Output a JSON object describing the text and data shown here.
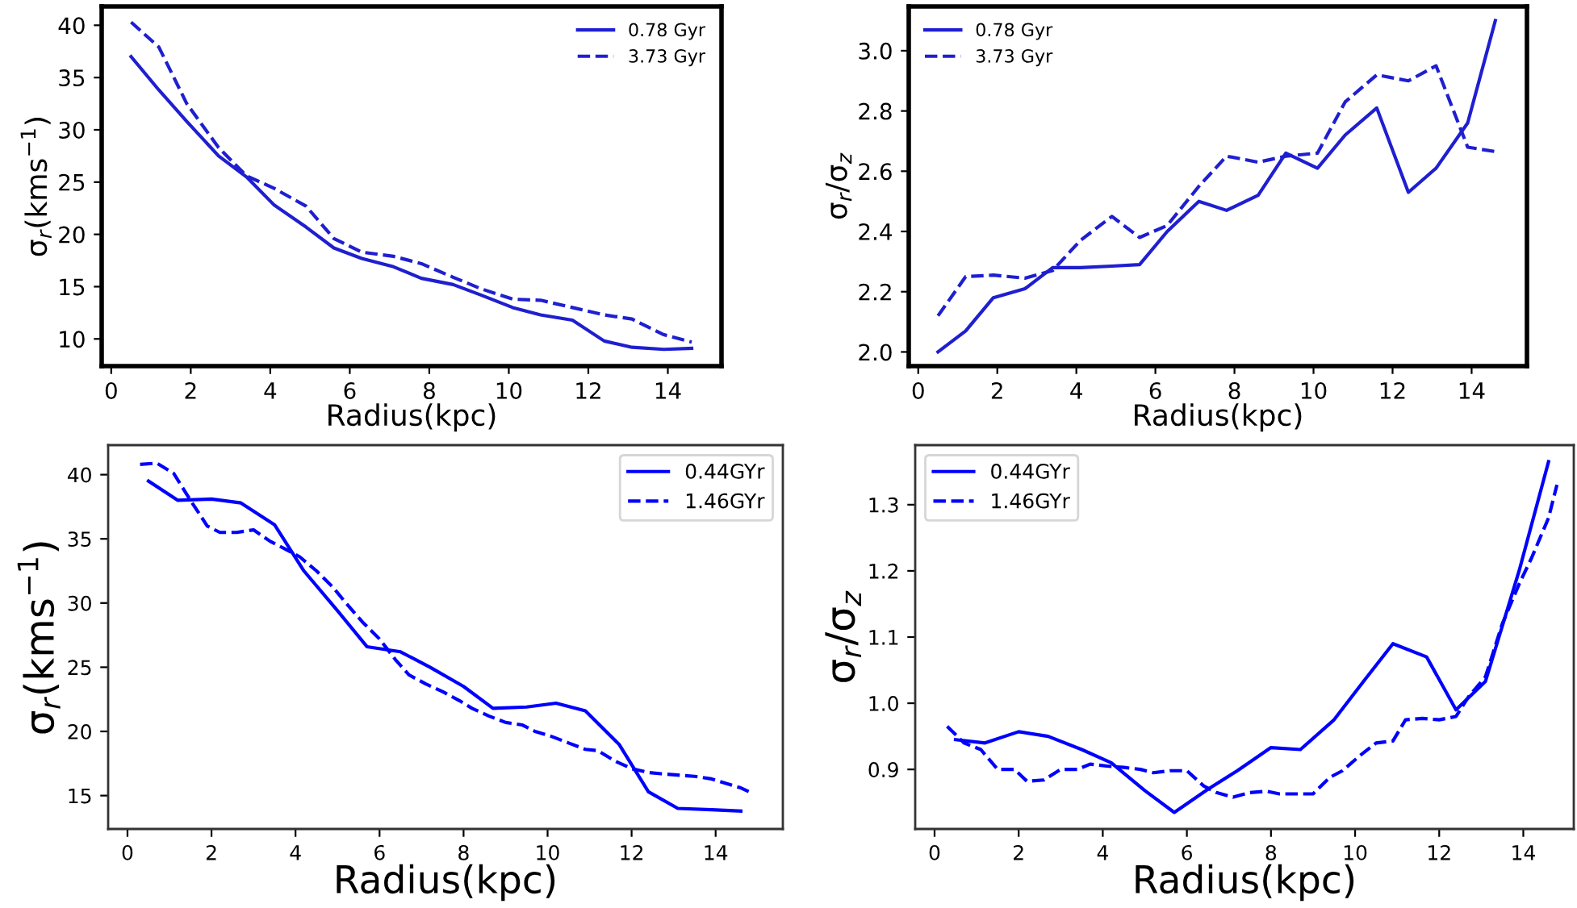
{
  "chart_data": [
    {
      "type": "line",
      "xlabel": "Radius(kpc)",
      "ylabel": "σ$_{r}$(kms$^{−1}$)",
      "xlim": [
        -0.24,
        15.35
      ],
      "ylim": [
        7.4,
        41.8
      ],
      "xticks": [
        0,
        2,
        4,
        6,
        8,
        10,
        12,
        14
      ],
      "yticks": [
        10,
        15,
        20,
        25,
        30,
        35,
        40
      ],
      "legend": "top right",
      "grid": false,
      "x": [
        0.5,
        1.2,
        1.9,
        2.7,
        3.4,
        4.1,
        4.9,
        5.6,
        6.3,
        7.1,
        7.8,
        8.6,
        9.3,
        10.1,
        10.8,
        11.6,
        12.4,
        13.1,
        13.9,
        14.6
      ],
      "series": [
        {
          "name": "0.78 Gyr",
          "color": "#1f1fd0",
          "line_style": "solid",
          "values": [
            37,
            33.8,
            30.8,
            27.5,
            25.5,
            22.8,
            20.7,
            18.7,
            17.7,
            16.9,
            15.8,
            15.2,
            14.2,
            13,
            12.3,
            11.8,
            9.8,
            9.2,
            9.0,
            9.1
          ]
        },
        {
          "name": "3.73 Gyr",
          "color": "#1f1fd0",
          "line_style": "dashed",
          "values": [
            40.3,
            37.9,
            32.5,
            28.3,
            25.6,
            24.4,
            22.7,
            19.6,
            18.3,
            17.9,
            17.2,
            15.9,
            14.8,
            13.8,
            13.7,
            13.0,
            12.3,
            11.9,
            10.4,
            9.7
          ]
        }
      ]
    },
    {
      "type": "line",
      "xlabel": "Radius(kpc)",
      "ylabel": "σ$_{r}$/σ$_{z}$",
      "xlim": [
        -0.24,
        15.4
      ],
      "ylim": [
        1.953,
        3.147
      ],
      "xticks": [
        0,
        2,
        4,
        6,
        8,
        10,
        12,
        14
      ],
      "yticks": [
        {
          "value": 2,
          "label": "2.0"
        },
        {
          "value": 2.2,
          "label": "2.2"
        },
        {
          "value": 2.4,
          "label": "2.4"
        },
        {
          "value": 2.6,
          "label": "2.6"
        },
        {
          "value": 2.8,
          "label": "2.8"
        },
        {
          "value": 3,
          "label": "3.0"
        }
      ],
      "legend": "top left",
      "grid": false,
      "x": [
        0.5,
        1.2,
        1.9,
        2.7,
        3.4,
        4.1,
        4.9,
        5.6,
        6.3,
        7.1,
        7.8,
        8.6,
        9.3,
        10.1,
        10.8,
        11.6,
        12.4,
        13.1,
        13.9,
        14.6
      ],
      "series": [
        {
          "name": "0.78 Gyr",
          "color": "#1f1fd0",
          "line_style": "solid",
          "values": [
            2.0,
            2.07,
            2.18,
            2.21,
            2.28,
            2.28,
            2.285,
            2.29,
            2.4,
            2.5,
            2.47,
            2.52,
            2.66,
            2.61,
            2.72,
            2.81,
            2.53,
            2.61,
            2.76,
            3.1
          ]
        },
        {
          "name": "3.73 Gyr",
          "color": "#1f1fd0",
          "line_style": "dashed",
          "values": [
            2.12,
            2.25,
            2.255,
            2.245,
            2.27,
            2.37,
            2.45,
            2.38,
            2.42,
            2.55,
            2.65,
            2.63,
            2.65,
            2.66,
            2.83,
            2.92,
            2.9,
            2.95,
            2.68,
            2.665
          ]
        }
      ]
    },
    {
      "type": "line",
      "xlabel": "Radius(kpc)",
      "ylabel": "σ$_{r}$(kms$^{−1}$)",
      "xlim": [
        -0.46,
        15.6
      ],
      "ylim": [
        12.4,
        42.3
      ],
      "xticks": [
        0,
        2,
        4,
        6,
        8,
        10,
        12,
        14
      ],
      "yticks": [
        15,
        20,
        25,
        30,
        35,
        40
      ],
      "legend": "top right",
      "grid": false,
      "series": [
        {
          "name": "0.44GYr",
          "color": "#0000ff",
          "line_style": "solid",
          "x": [
            0.5,
            1.2,
            2.0,
            2.7,
            3.5,
            4.2,
            5.0,
            5.7,
            6.5,
            7.2,
            8.0,
            8.7,
            9.5,
            10.2,
            10.9,
            11.7,
            12.4,
            13.1,
            13.9,
            14.6
          ],
          "values": [
            39.5,
            38,
            38.1,
            37.8,
            36.1,
            32.5,
            29.4,
            26.6,
            26.2,
            25,
            23.5,
            21.8,
            21.9,
            22.2,
            21.6,
            19,
            15.3,
            14,
            13.9,
            13.8
          ]
        },
        {
          "name": "1.46GYr",
          "color": "#0000ff",
          "line_style": "dashed",
          "x": [
            0.3,
            0.7,
            1.1,
            1.5,
            1.9,
            2.2,
            2.6,
            3.0,
            3.4,
            3.7,
            4.1,
            4.5,
            4.9,
            5.2,
            5.6,
            6.0,
            6.4,
            6.7,
            7.1,
            7.5,
            7.9,
            8.2,
            8.6,
            9.0,
            9.4,
            9.7,
            10.1,
            10.5,
            10.9,
            11.2,
            11.6,
            12.0,
            12.4,
            12.7,
            13.1,
            13.5,
            13.9,
            14.2,
            14.6,
            14.8
          ],
          "values": [
            40.8,
            40.9,
            40.1,
            38,
            36,
            35.5,
            35.5,
            35.7,
            34.8,
            34.3,
            33.6,
            32.5,
            31.2,
            30,
            28.5,
            27.2,
            25.5,
            24.4,
            23.7,
            23.1,
            22.4,
            21.8,
            21.2,
            20.7,
            20.5,
            20,
            19.6,
            19.1,
            18.6,
            18.5,
            17.7,
            17.1,
            16.8,
            16.7,
            16.6,
            16.5,
            16.3,
            16,
            15.6,
            15.3
          ]
        }
      ]
    },
    {
      "type": "line",
      "xlabel": "Radius(kpc)",
      "ylabel": "σ$_{r}$/σ$_{z}$",
      "xlim": [
        -0.46,
        15.2
      ],
      "ylim": [
        0.81,
        1.39
      ],
      "xticks": [
        0,
        2,
        4,
        6,
        8,
        10,
        12,
        14
      ],
      "yticks": [
        {
          "value": 0.9,
          "label": "0.9"
        },
        {
          "value": 1,
          "label": "1.0"
        },
        {
          "value": 1.1,
          "label": "1.1"
        },
        {
          "value": 1.2,
          "label": "1.2"
        },
        {
          "value": 1.3,
          "label": "1.3"
        }
      ],
      "legend": "top left",
      "grid": false,
      "series": [
        {
          "name": "0.44GYr",
          "color": "#0000ff",
          "line_style": "solid",
          "x": [
            0.5,
            1.2,
            2.0,
            2.7,
            3.5,
            4.2,
            5.0,
            5.7,
            6.5,
            7.2,
            8.0,
            8.7,
            9.5,
            10.2,
            10.9,
            11.7,
            12.4,
            13.1,
            13.9,
            14.6
          ],
          "values": [
            0.945,
            0.94,
            0.957,
            0.95,
            0.93,
            0.91,
            0.868,
            0.835,
            0.87,
            0.898,
            0.933,
            0.93,
            0.975,
            1.033,
            1.09,
            1.07,
            0.99,
            1.033,
            1.2,
            1.365
          ]
        },
        {
          "name": "1.46GYr",
          "color": "#0000ff",
          "line_style": "dashed",
          "x": [
            0.3,
            0.7,
            1.1,
            1.5,
            1.9,
            2.2,
            2.6,
            3.0,
            3.4,
            3.7,
            4.1,
            4.5,
            4.9,
            5.2,
            5.6,
            6.0,
            6.4,
            6.7,
            7.1,
            7.5,
            7.9,
            8.2,
            8.6,
            9.0,
            9.4,
            9.7,
            10.1,
            10.5,
            10.9,
            11.2,
            11.6,
            12.0,
            12.4,
            12.7,
            13.1,
            13.5,
            13.9,
            14.2,
            14.6,
            14.8
          ],
          "values": [
            0.965,
            0.94,
            0.93,
            0.9,
            0.9,
            0.882,
            0.884,
            0.9,
            0.9,
            0.908,
            0.905,
            0.903,
            0.9,
            0.895,
            0.898,
            0.898,
            0.875,
            0.865,
            0.858,
            0.865,
            0.867,
            0.863,
            0.863,
            0.863,
            0.888,
            0.898,
            0.92,
            0.94,
            0.943,
            0.975,
            0.977,
            0.975,
            0.98,
            1.01,
            1.04,
            1.12,
            1.18,
            1.22,
            1.28,
            1.33
          ]
        }
      ]
    }
  ]
}
